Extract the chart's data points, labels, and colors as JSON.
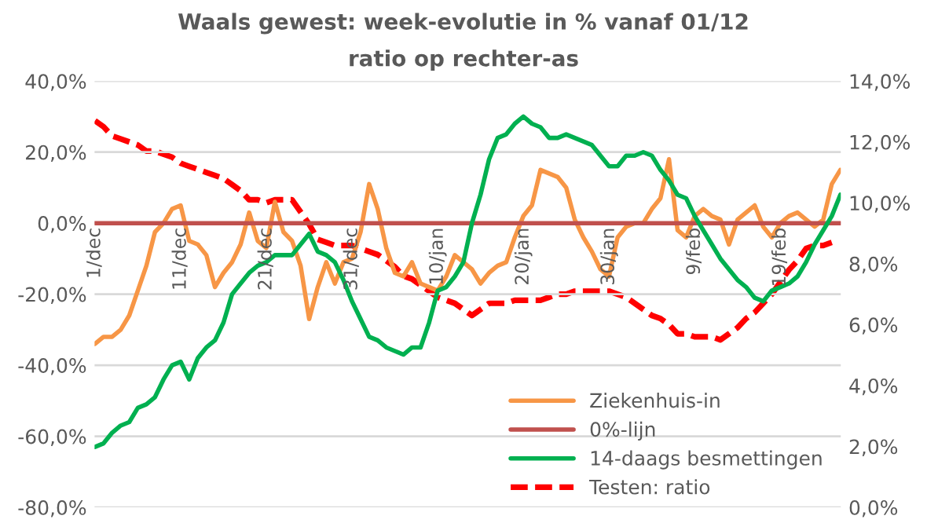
{
  "chart_data": {
    "type": "line",
    "title": "Waals gewest: week-evolutie in % vanaf 01/12",
    "subtitle": "ratio op rechter-as",
    "categories": [
      "1/dec",
      null,
      null,
      null,
      null,
      null,
      null,
      null,
      null,
      null,
      "11/dec",
      null,
      null,
      null,
      null,
      null,
      null,
      null,
      null,
      null,
      "21/dec",
      null,
      null,
      null,
      null,
      null,
      null,
      null,
      null,
      null,
      "31/dec",
      null,
      null,
      null,
      null,
      null,
      null,
      null,
      null,
      null,
      "10/jan",
      null,
      null,
      null,
      null,
      null,
      null,
      null,
      null,
      null,
      "20/jan",
      null,
      null,
      null,
      null,
      null,
      null,
      null,
      null,
      null,
      "30/jan",
      null,
      null,
      null,
      null,
      null,
      null,
      null,
      null,
      null,
      "9/feb",
      null,
      null,
      null,
      null,
      null,
      null,
      null,
      null,
      null,
      "19/feb",
      null,
      null,
      null,
      null,
      null,
      null,
      null
    ],
    "ylim": [
      -80,
      40
    ],
    "yticks": [
      {
        "value": -80,
        "label": "-80,0%"
      },
      {
        "value": -60,
        "label": "-60,0%"
      },
      {
        "value": -40,
        "label": "-40,0%"
      },
      {
        "value": -20,
        "label": "-20,0%"
      },
      {
        "value": 0,
        "label": "0,0%"
      },
      {
        "value": 20,
        "label": "20,0%"
      },
      {
        "value": 40,
        "label": "40,0%"
      }
    ],
    "y2lim": [
      0,
      14
    ],
    "y2ticks": [
      {
        "value": 0,
        "label": "0,0%"
      },
      {
        "value": 2,
        "label": "2,0%"
      },
      {
        "value": 4,
        "label": "4,0%"
      },
      {
        "value": 6,
        "label": "6,0%"
      },
      {
        "value": 8,
        "label": "8,0%"
      },
      {
        "value": 10,
        "label": "10,0%"
      },
      {
        "value": 12,
        "label": "12,0%"
      },
      {
        "value": 14,
        "label": "14,0%"
      }
    ],
    "grid": "y",
    "legend": "bottom right",
    "series": [
      {
        "name": "Ziekenhuis-in",
        "color": "#f79646",
        "values": [
          -34,
          -32,
          -32,
          -30,
          -26,
          -19,
          -12,
          -2.5,
          0,
          4,
          5,
          -5,
          -6,
          -9,
          -18,
          -14,
          -11,
          -6,
          3,
          -5,
          -7,
          6,
          -2.5,
          -5,
          -12,
          -27,
          -18,
          -11,
          -17,
          -11,
          -10,
          -2.5,
          11,
          4,
          -7,
          -14,
          -15,
          -11,
          -17,
          -18,
          -19,
          -15,
          -9,
          -11,
          -13,
          -17,
          -14,
          -12,
          -11,
          -4,
          2,
          5,
          15,
          14,
          13,
          10,
          1,
          -4,
          -8,
          -13,
          -15,
          -4,
          -1,
          0,
          0,
          4,
          7,
          18,
          -2,
          -4,
          2,
          4,
          2,
          1,
          -6,
          1,
          3,
          5,
          -1,
          -4,
          0,
          2,
          3,
          1,
          -1,
          1,
          11,
          15
        ]
      },
      {
        "name": "0%-lijn",
        "color": "#c0504d",
        "values": [
          0,
          0,
          0,
          0,
          0,
          0,
          0,
          0,
          0,
          0,
          0,
          0,
          0,
          0,
          0,
          0,
          0,
          0,
          0,
          0,
          0,
          0,
          0,
          0,
          0,
          0,
          0,
          0,
          0,
          0,
          0,
          0,
          0,
          0,
          0,
          0,
          0,
          0,
          0,
          0,
          0,
          0,
          0,
          0,
          0,
          0,
          0,
          0,
          0,
          0,
          0,
          0,
          0,
          0,
          0,
          0,
          0,
          0,
          0,
          0,
          0,
          0,
          0,
          0,
          0,
          0,
          0,
          0,
          0,
          0,
          0,
          0,
          0,
          0,
          0,
          0,
          0,
          0,
          0,
          0,
          0,
          0,
          0,
          0,
          0,
          0,
          0,
          0
        ]
      },
      {
        "name": "14-daags besmettingen",
        "color": "#00b050",
        "values": [
          -63,
          -62,
          -59,
          -57,
          -56,
          -52,
          -51,
          -49,
          -44,
          -40,
          -39,
          -44,
          -38,
          -35,
          -33,
          -28,
          -20,
          -17,
          -14,
          -12,
          -11,
          -9,
          -9,
          -9,
          -6,
          -3,
          -8,
          -9,
          -11,
          -16,
          -22,
          -27,
          -32,
          -33,
          -35,
          -36,
          -37,
          -35,
          -35,
          -28,
          -19,
          -18,
          -15,
          -11,
          0,
          8,
          18,
          24,
          25,
          28,
          30,
          28,
          27,
          24,
          24,
          25,
          24,
          23,
          22,
          19,
          16,
          16,
          19,
          19,
          20,
          19,
          15,
          12,
          8,
          7,
          2,
          -2,
          -6,
          -10,
          -13,
          -16,
          -18,
          -21,
          -22,
          -19,
          -18,
          -17,
          -15,
          -11,
          -6,
          -2,
          2,
          8
        ]
      },
      {
        "name": "Testen: ratio",
        "color": "#ff0000",
        "axis": "y2",
        "line_style": "dashed",
        "values": [
          12.7,
          12.5,
          12.2,
          12.1,
          12.0,
          11.9,
          11.7,
          11.7,
          11.6,
          11.5,
          11.3,
          11.2,
          11.1,
          11.0,
          10.9,
          10.8,
          10.6,
          10.4,
          10.1,
          10.1,
          10.0,
          10.1,
          10.1,
          10.1,
          9.7,
          9.3,
          8.8,
          8.7,
          8.6,
          8.6,
          8.6,
          8.5,
          8.4,
          8.3,
          8.1,
          7.9,
          7.6,
          7.5,
          7.3,
          7.1,
          6.9,
          6.8,
          6.7,
          6.5,
          6.3,
          6.5,
          6.7,
          6.7,
          6.7,
          6.8,
          6.8,
          6.8,
          6.8,
          6.9,
          7.0,
          7.0,
          7.1,
          7.1,
          7.1,
          7.1,
          7.1,
          7.0,
          6.9,
          6.7,
          6.5,
          6.3,
          6.2,
          6.0,
          5.7,
          5.7,
          5.6,
          5.6,
          5.6,
          5.5,
          5.7,
          5.9,
          6.2,
          6.4,
          6.7,
          7.0,
          7.4,
          7.8,
          8.1,
          8.5,
          8.6,
          8.6,
          8.7,
          null
        ]
      }
    ]
  }
}
